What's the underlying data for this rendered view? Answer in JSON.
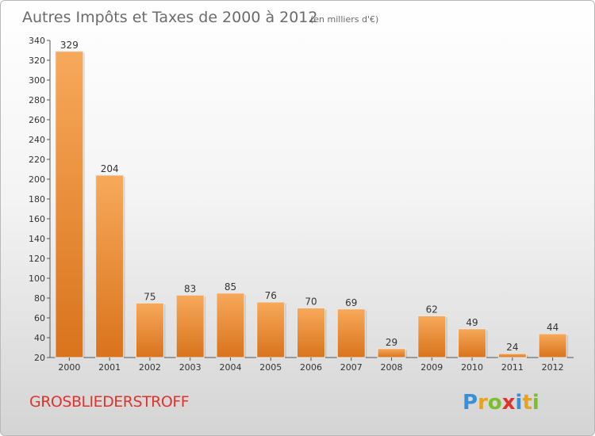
{
  "chart_data": {
    "type": "bar",
    "title": "Autres Impôts et Taxes de 2000 à 2012",
    "unit_note": "(en milliers d'€)",
    "categories": [
      "2000",
      "2001",
      "2002",
      "2003",
      "2004",
      "2005",
      "2006",
      "2007",
      "2008",
      "2009",
      "2010",
      "2011",
      "2012"
    ],
    "values": [
      329,
      204,
      75,
      83,
      85,
      76,
      70,
      69,
      29,
      62,
      49,
      24,
      44
    ],
    "ylim": [
      20,
      340
    ],
    "yticks": [
      20,
      40,
      60,
      80,
      100,
      120,
      140,
      160,
      180,
      200,
      220,
      240,
      260,
      280,
      300,
      320,
      340
    ],
    "grid": false,
    "legend": "none",
    "bar_color_light": "#f7a95a",
    "bar_color_dark": "#d9731c"
  },
  "commune": "GROSBLIEDERSTROFF",
  "logo": {
    "letters": [
      "P",
      "r",
      "o",
      "x",
      "i",
      "t",
      "i"
    ],
    "colors": [
      "#3a8fd8",
      "#e8a21c",
      "#7bbf2e",
      "#e0332c",
      "#3a8fd8",
      "#e8a21c",
      "#7bbf2e"
    ]
  }
}
